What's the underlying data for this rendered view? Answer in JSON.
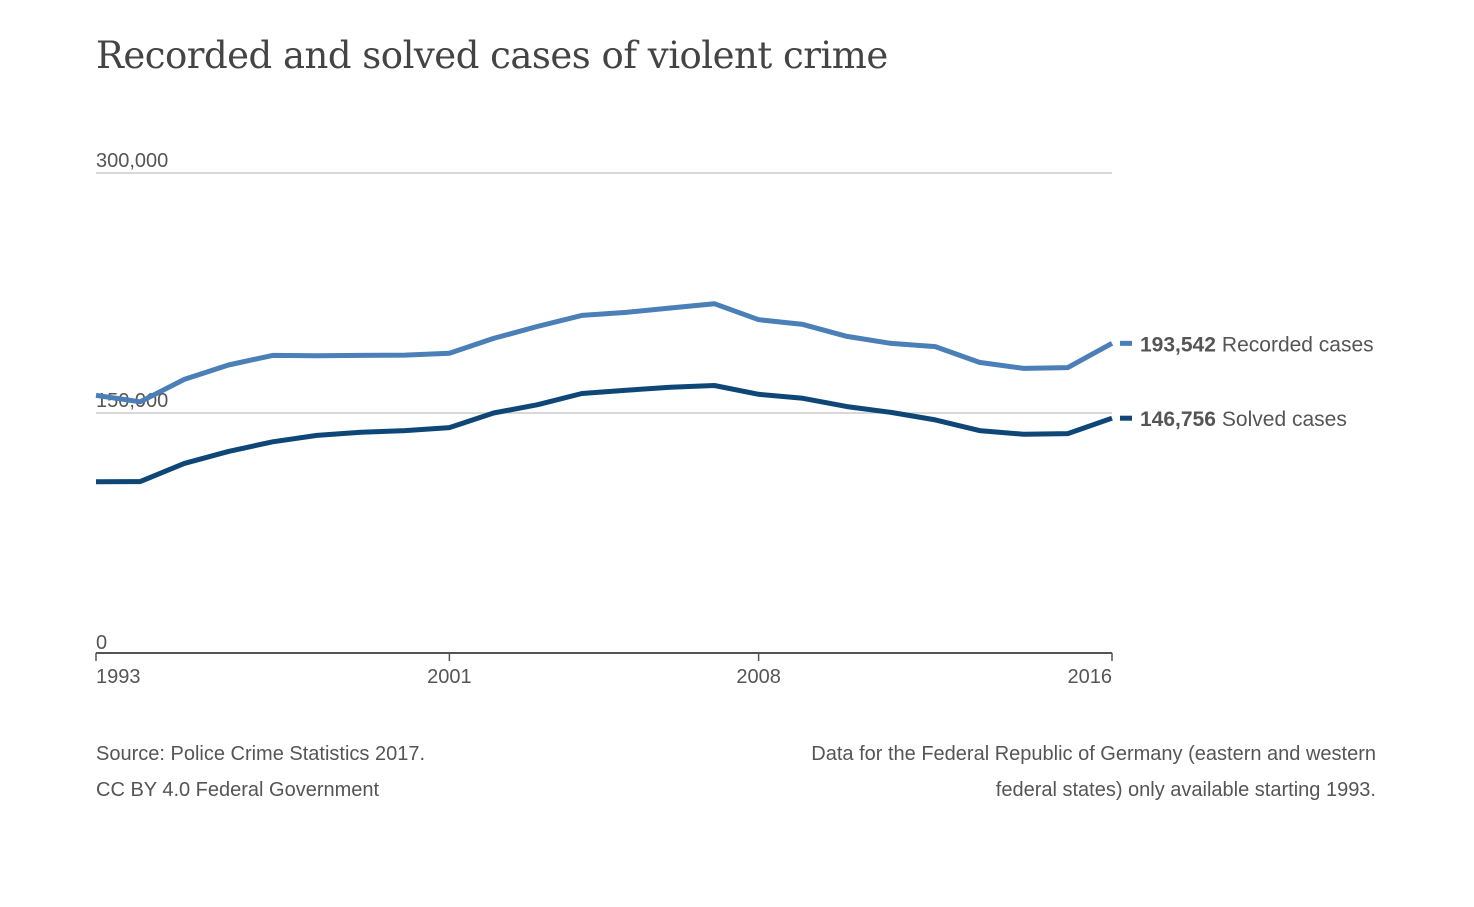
{
  "title": "Recorded and solved cases of violent crime",
  "chart_data": {
    "type": "line",
    "title": "Recorded and solved cases of violent crime",
    "x": [
      1993,
      1994,
      1995,
      1996,
      1997,
      1998,
      1999,
      2000,
      2001,
      2002,
      2003,
      2004,
      2005,
      2006,
      2007,
      2008,
      2009,
      2010,
      2011,
      2012,
      2013,
      2014,
      2015,
      2016
    ],
    "series": [
      {
        "name": "Recorded cases",
        "color": "#4a7fb8",
        "values": [
          161000,
          157000,
          171000,
          180000,
          186000,
          185800,
          186000,
          186200,
          187300,
          196600,
          204100,
          211000,
          212900,
          215600,
          218300,
          208300,
          205400,
          197900,
          193500,
          191500,
          181600,
          177900,
          178400,
          193542
        ]
      },
      {
        "name": "Solved cases",
        "color": "#0d4677",
        "values": [
          107000,
          107100,
          118500,
          126000,
          132000,
          136000,
          138000,
          139000,
          140900,
          150000,
          155200,
          162200,
          164200,
          166100,
          167200,
          161700,
          159200,
          154000,
          150400,
          145700,
          139000,
          136700,
          137100,
          146756
        ]
      }
    ],
    "end_labels": [
      {
        "value": "193,542",
        "name": "Recorded cases"
      },
      {
        "value": "146,756",
        "name": "Solved cases"
      }
    ],
    "y_ticks": [
      {
        "value": 0,
        "label": "0"
      },
      {
        "value": 150000,
        "label": "150,000"
      },
      {
        "value": 300000,
        "label": "300,000"
      }
    ],
    "x_ticks": [
      {
        "value": 1993,
        "label": "1993"
      },
      {
        "value": 2001,
        "label": "2001"
      },
      {
        "value": 2008,
        "label": "2008"
      },
      {
        "value": 2016,
        "label": "2016"
      }
    ],
    "xlim": [
      1993,
      2016
    ],
    "ylim": [
      0,
      300000
    ],
    "grid": true,
    "legend": "end-of-line labels right"
  },
  "footer": {
    "source_line1": "Source: Police Crime Statistics 2017.",
    "source_line2": "CC BY 4.0 Federal Government",
    "note_line1": "Data for the Federal Republic of Germany (eastern and western",
    "note_line2": "federal states) only available starting 1993."
  },
  "colors": {
    "recorded": "#4a7fb8",
    "solved": "#0d4677",
    "grid": "#cccccc",
    "axis": "#555555",
    "text": "#555555"
  }
}
